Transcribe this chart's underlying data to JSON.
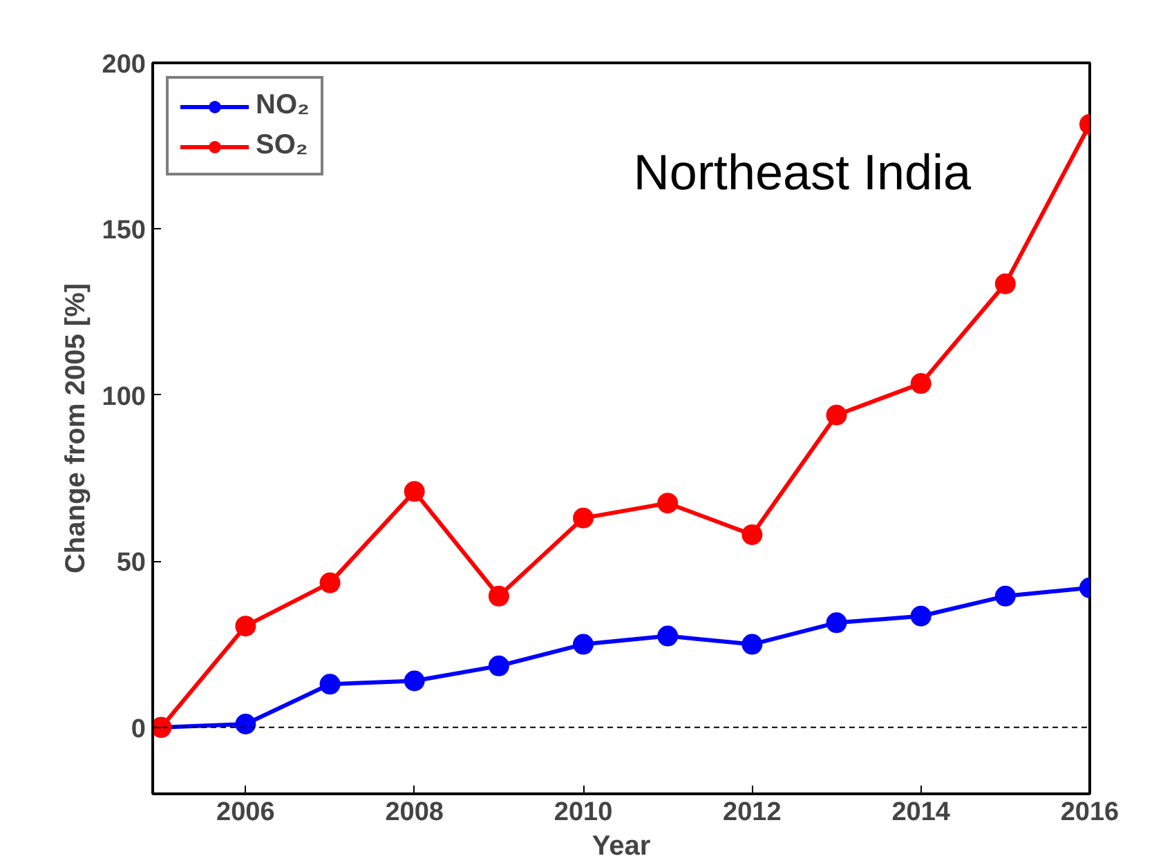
{
  "chart_data": {
    "type": "line",
    "xlabel": "Year",
    "ylabel": "Change from 2005 [%]",
    "x": [
      2005,
      2006,
      2007,
      2008,
      2009,
      2010,
      2011,
      2012,
      2013,
      2014,
      2015,
      2016
    ],
    "series": [
      {
        "name": "NO₂",
        "color": "#0000ff",
        "values": [
          0,
          1,
          13,
          14,
          18.5,
          25,
          27.5,
          25,
          31.5,
          33.5,
          39.5,
          42
        ]
      },
      {
        "name": "SO₂",
        "color": "#ff0000",
        "values": [
          0,
          30.5,
          43.5,
          71,
          39.5,
          63,
          67.5,
          58,
          94,
          103.5,
          133.5,
          181.5
        ]
      }
    ],
    "xlim": [
      2004.9,
      2016
    ],
    "ylim": [
      -20,
      200
    ],
    "xticks": [
      2006,
      2008,
      2010,
      2012,
      2014,
      2016
    ],
    "yticks": [
      0,
      50,
      100,
      150,
      200
    ],
    "annotations": [
      "Northeast India"
    ],
    "ref_lines": [
      {
        "axis": "y",
        "value": 0,
        "color": "#000000",
        "line_style": "dashed"
      }
    ],
    "marker": "circle",
    "line_style": "solid",
    "legend": "top left",
    "grid": false
  }
}
